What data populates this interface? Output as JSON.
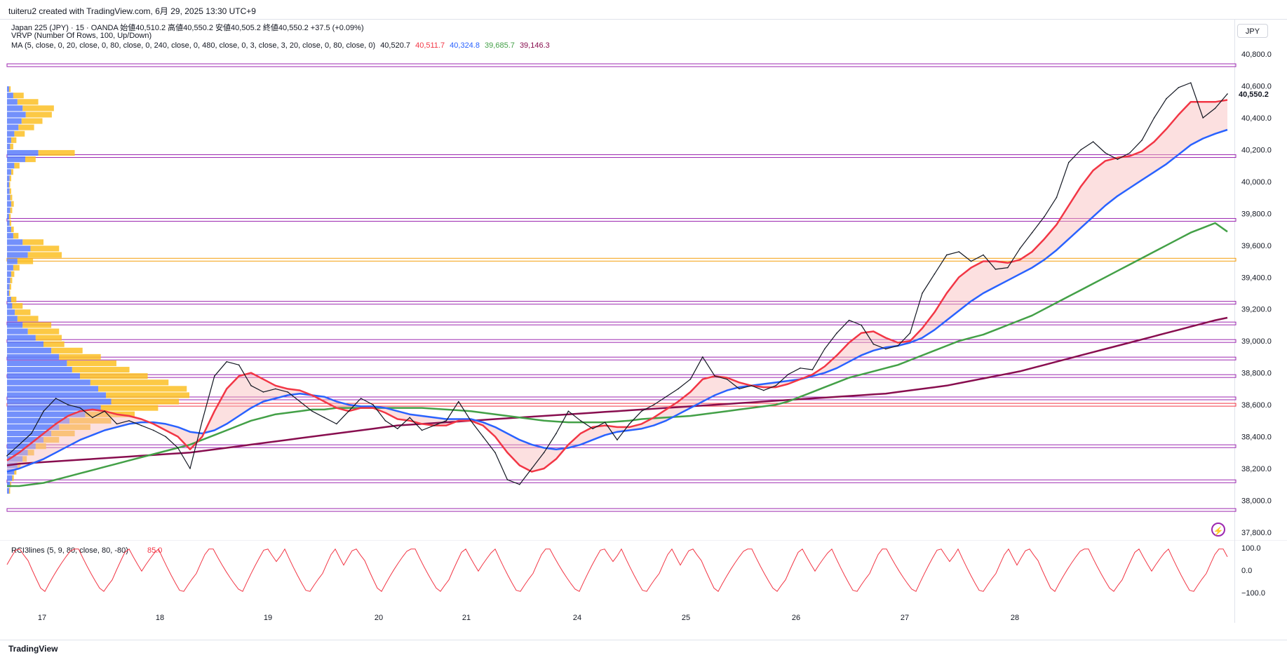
{
  "header": {
    "credit": "tuiteru2 created with TradingView.com, 6月 29, 2025 13:30 UTC+9",
    "symbol_line": "Japan 225 (JPY) · 15 · OANDA  始値40,510.2  高値40,550.2  安値40,505.2  終値40,550.2  +37.5 (+0.09%)",
    "vrvp_line": "VRVP (Number Of Rows, 100, Up/Down)",
    "ma_label": "MA (5, close, 0, 20, close, 0, 80, close, 0, 240, close, 0, 480, close, 0, 3, close, 3, 20, close, 0, 80, close, 0)",
    "ma_values": [
      "40,520.7",
      "40,511.7",
      "40,324.8",
      "39,685.7",
      "39,146.3"
    ],
    "ma_colors": [
      "#131722",
      "#f23645",
      "#2962ff",
      "#43a047",
      "#880e4f"
    ],
    "currency_button": "JPY"
  },
  "footer": {
    "logo_text": "TradingView"
  },
  "chart_data": [
    {
      "type": "line",
      "title": "Japan 225 (JPY) 15",
      "xlabel": "",
      "ylabel": "",
      "x_ticks": [
        "17",
        "18",
        "19",
        "20",
        "21",
        "24",
        "25",
        "26",
        "27",
        "28"
      ],
      "y_ticks": [
        "37,800.0",
        "38,000.0",
        "38,200.0",
        "38,400.0",
        "38,600.0",
        "38,800.0",
        "39,000.0",
        "39,200.0",
        "39,400.0",
        "39,600.0",
        "39,800.0",
        "40,000.0",
        "40,200.0",
        "40,400.0",
        "40,600.0",
        "40,800.0"
      ],
      "ylim": [
        37760,
        40840
      ],
      "last_price_label": "40,550.2",
      "x": [
        0,
        8,
        16,
        24,
        32,
        40,
        48,
        56,
        64,
        72,
        80,
        88,
        96,
        104,
        112,
        120,
        128,
        136,
        144,
        152,
        160,
        168,
        176,
        184,
        192,
        200,
        208,
        216,
        224,
        232,
        240,
        248,
        256,
        264,
        272,
        280,
        288,
        296,
        304,
        312,
        320,
        328,
        336,
        344,
        352,
        360,
        368,
        376,
        384,
        392,
        400,
        408,
        416,
        424,
        432,
        440,
        448,
        456,
        464,
        472,
        480,
        488,
        496,
        504,
        512,
        520,
        528,
        536,
        544,
        552,
        560,
        568,
        576,
        584,
        592,
        600,
        608,
        616,
        624,
        632,
        640,
        648,
        656,
        664,
        672,
        680,
        688,
        696,
        704,
        712,
        720,
        728,
        736,
        744,
        752,
        760,
        768,
        776,
        784,
        792,
        800
      ],
      "series": [
        {
          "name": "Price",
          "color": "#131722",
          "values": [
            38280,
            38350,
            38420,
            38560,
            38640,
            38600,
            38580,
            38520,
            38560,
            38480,
            38500,
            38470,
            38440,
            38400,
            38330,
            38200,
            38500,
            38780,
            38870,
            38850,
            38720,
            38680,
            38700,
            38680,
            38620,
            38560,
            38520,
            38480,
            38560,
            38640,
            38600,
            38500,
            38450,
            38520,
            38440,
            38470,
            38500,
            38620,
            38500,
            38400,
            38300,
            38130,
            38100,
            38200,
            38300,
            38420,
            38560,
            38500,
            38450,
            38490,
            38380,
            38480,
            38560,
            38600,
            38650,
            38700,
            38760,
            38900,
            38780,
            38760,
            38700,
            38720,
            38690,
            38720,
            38790,
            38830,
            38820,
            38950,
            39050,
            39130,
            39100,
            38980,
            38950,
            38970,
            39050,
            39300,
            39420,
            39540,
            39560,
            39500,
            39540,
            39450,
            39460,
            39580,
            39680,
            39780,
            39900,
            40120,
            40200,
            40250,
            40180,
            40140,
            40180,
            40260,
            40400,
            40520,
            40590,
            40620,
            40400,
            40460,
            40550
          ]
        },
        {
          "name": "MA20",
          "color": "#f23645",
          "values": [
            38250,
            38300,
            38360,
            38420,
            38480,
            38530,
            38560,
            38570,
            38560,
            38540,
            38530,
            38510,
            38480,
            38440,
            38400,
            38320,
            38400,
            38560,
            38700,
            38780,
            38800,
            38760,
            38720,
            38700,
            38690,
            38660,
            38620,
            38580,
            38560,
            38580,
            38580,
            38550,
            38510,
            38500,
            38480,
            38470,
            38470,
            38500,
            38500,
            38470,
            38400,
            38300,
            38220,
            38180,
            38200,
            38260,
            38350,
            38420,
            38460,
            38470,
            38460,
            38460,
            38480,
            38520,
            38570,
            38620,
            38680,
            38760,
            38780,
            38770,
            38740,
            38720,
            38710,
            38710,
            38730,
            38760,
            38790,
            38840,
            38910,
            38990,
            39050,
            39060,
            39020,
            38990,
            39000,
            39080,
            39180,
            39300,
            39400,
            39460,
            39500,
            39500,
            39490,
            39510,
            39560,
            39640,
            39730,
            39850,
            39970,
            40070,
            40130,
            40150,
            40160,
            40190,
            40250,
            40330,
            40420,
            40500,
            40500,
            40500,
            40512
          ]
        },
        {
          "name": "MA80",
          "color": "#2962ff",
          "values": [
            38180,
            38200,
            38230,
            38260,
            38300,
            38340,
            38380,
            38410,
            38440,
            38460,
            38480,
            38490,
            38490,
            38480,
            38460,
            38430,
            38420,
            38440,
            38480,
            38530,
            38580,
            38620,
            38640,
            38660,
            38670,
            38660,
            38650,
            38620,
            38600,
            38590,
            38590,
            38580,
            38560,
            38540,
            38530,
            38520,
            38510,
            38510,
            38510,
            38490,
            38460,
            38420,
            38380,
            38350,
            38330,
            38320,
            38330,
            38350,
            38380,
            38410,
            38430,
            38440,
            38450,
            38470,
            38500,
            38540,
            38580,
            38620,
            38660,
            38690,
            38710,
            38720,
            38730,
            38740,
            38750,
            38760,
            38780,
            38800,
            38830,
            38870,
            38910,
            38940,
            38960,
            38970,
            38990,
            39020,
            39070,
            39130,
            39190,
            39250,
            39300,
            39340,
            39380,
            39420,
            39460,
            39510,
            39570,
            39640,
            39710,
            39780,
            39850,
            39910,
            39960,
            40010,
            40060,
            40110,
            40170,
            40230,
            40270,
            40300,
            40325
          ]
        },
        {
          "name": "MA240",
          "color": "#43a047",
          "values": [
            38090,
            38090,
            38100,
            38110,
            38130,
            38150,
            38170,
            38190,
            38210,
            38230,
            38250,
            38270,
            38290,
            38310,
            38330,
            38350,
            38380,
            38410,
            38440,
            38470,
            38500,
            38520,
            38540,
            38550,
            38560,
            38570,
            38570,
            38580,
            38580,
            38580,
            38580,
            38580,
            38580,
            38580,
            38580,
            38575,
            38570,
            38565,
            38560,
            38550,
            38540,
            38530,
            38520,
            38510,
            38500,
            38495,
            38490,
            38490,
            38490,
            38490,
            38495,
            38500,
            38510,
            38515,
            38520,
            38525,
            38530,
            38540,
            38550,
            38560,
            38570,
            38580,
            38590,
            38600,
            38620,
            38650,
            38680,
            38710,
            38740,
            38770,
            38790,
            38810,
            38830,
            38850,
            38880,
            38910,
            38940,
            38970,
            39000,
            39020,
            39040,
            39070,
            39100,
            39130,
            39160,
            39200,
            39240,
            39280,
            39320,
            39360,
            39400,
            39440,
            39480,
            39520,
            39560,
            39600,
            39640,
            39680,
            39710,
            39740,
            39686
          ]
        },
        {
          "name": "MA480",
          "color": "#880e4f",
          "values": [
            38220,
            38230,
            38235,
            38240,
            38245,
            38250,
            38255,
            38260,
            38265,
            38270,
            38275,
            38280,
            38285,
            38290,
            38295,
            38300,
            38310,
            38320,
            38330,
            38340,
            38350,
            38360,
            38370,
            38380,
            38390,
            38400,
            38410,
            38420,
            38430,
            38440,
            38450,
            38460,
            38470,
            38475,
            38480,
            38485,
            38490,
            38495,
            38500,
            38505,
            38510,
            38515,
            38520,
            38525,
            38530,
            38535,
            38540,
            38545,
            38550,
            38555,
            38560,
            38565,
            38570,
            38575,
            38580,
            38585,
            38590,
            38595,
            38600,
            38605,
            38610,
            38615,
            38620,
            38625,
            38630,
            38635,
            38640,
            38645,
            38650,
            38655,
            38660,
            38665,
            38670,
            38680,
            38690,
            38700,
            38710,
            38720,
            38735,
            38750,
            38765,
            38780,
            38795,
            38810,
            38830,
            38850,
            38870,
            38890,
            38910,
            38930,
            38950,
            38970,
            38990,
            39010,
            39030,
            39050,
            39070,
            39090,
            39110,
            39130,
            39146
          ]
        }
      ],
      "horizontal_levels": [
        {
          "value": 40730,
          "color": "#9c27b0"
        },
        {
          "value": 40160,
          "color": "#9c27b0"
        },
        {
          "value": 39760,
          "color": "#9c27b0"
        },
        {
          "value": 39510,
          "color": "#f59e0b"
        },
        {
          "value": 39240,
          "color": "#9c27b0"
        },
        {
          "value": 39110,
          "color": "#9c27b0"
        },
        {
          "value": 39000,
          "color": "#9c27b0"
        },
        {
          "value": 38890,
          "color": "#9c27b0"
        },
        {
          "value": 38780,
          "color": "#9c27b0"
        },
        {
          "value": 38640,
          "color": "#9c27b0"
        },
        {
          "value": 38600,
          "color": "#f23645"
        },
        {
          "value": 38340,
          "color": "#9c27b0"
        },
        {
          "value": 38120,
          "color": "#9c27b0"
        },
        {
          "value": 37940,
          "color": "#9c27b0"
        }
      ],
      "volume_profile": {
        "rows": [
          40580,
          40540,
          40500,
          40460,
          40420,
          40380,
          40340,
          40300,
          40260,
          40220,
          40180,
          40140,
          40100,
          40060,
          40020,
          39980,
          39940,
          39900,
          39860,
          39820,
          39780,
          39740,
          39700,
          39660,
          39620,
          39580,
          39540,
          39500,
          39460,
          39420,
          39380,
          39340,
          39300,
          39260,
          39220,
          39180,
          39140,
          39100,
          39060,
          39020,
          38980,
          38940,
          38900,
          38860,
          38820,
          38780,
          38740,
          38700,
          38660,
          38620,
          38580,
          38540,
          38500,
          38460,
          38420,
          38380,
          38340,
          38300,
          38260,
          38220,
          38180,
          38140,
          38100,
          38060
        ],
        "up": [
          4,
          12,
          20,
          30,
          36,
          28,
          22,
          14,
          8,
          6,
          60,
          35,
          14,
          8,
          5,
          4,
          5,
          6,
          8,
          6,
          4,
          5,
          8,
          12,
          30,
          45,
          40,
          20,
          12,
          8,
          6,
          5,
          4,
          8,
          10,
          15,
          20,
          30,
          40,
          55,
          70,
          85,
          100,
          115,
          125,
          140,
          160,
          175,
          190,
          200,
          180,
          150,
          120,
          100,
          85,
          70,
          55,
          40,
          30,
          20,
          14,
          10,
          6,
          4
        ],
        "down": [
          3,
          20,
          40,
          60,
          50,
          40,
          30,
          20,
          10,
          6,
          70,
          20,
          10,
          4,
          3,
          2,
          3,
          4,
          5,
          4,
          3,
          3,
          5,
          10,
          40,
          55,
          65,
          30,
          12,
          6,
          4,
          3,
          2,
          10,
          20,
          30,
          40,
          55,
          60,
          50,
          40,
          60,
          80,
          95,
          110,
          130,
          150,
          170,
          160,
          130,
          110,
          95,
          80,
          60,
          45,
          30,
          20,
          12,
          8,
          6,
          4,
          3,
          2,
          2
        ],
        "up_color": "#5b7cfa",
        "down_color": "#fbbf24"
      }
    },
    {
      "type": "line",
      "title": "RCI3lines (5, 9, 80, close, 80, -80)",
      "last_value": "85.0",
      "ylim": [
        -110,
        110
      ],
      "y_ticks": [
        "100.0",
        "0.0",
        "−100.0"
      ],
      "series": [
        {
          "name": "RCI",
          "color": "#f23645"
        }
      ]
    }
  ]
}
